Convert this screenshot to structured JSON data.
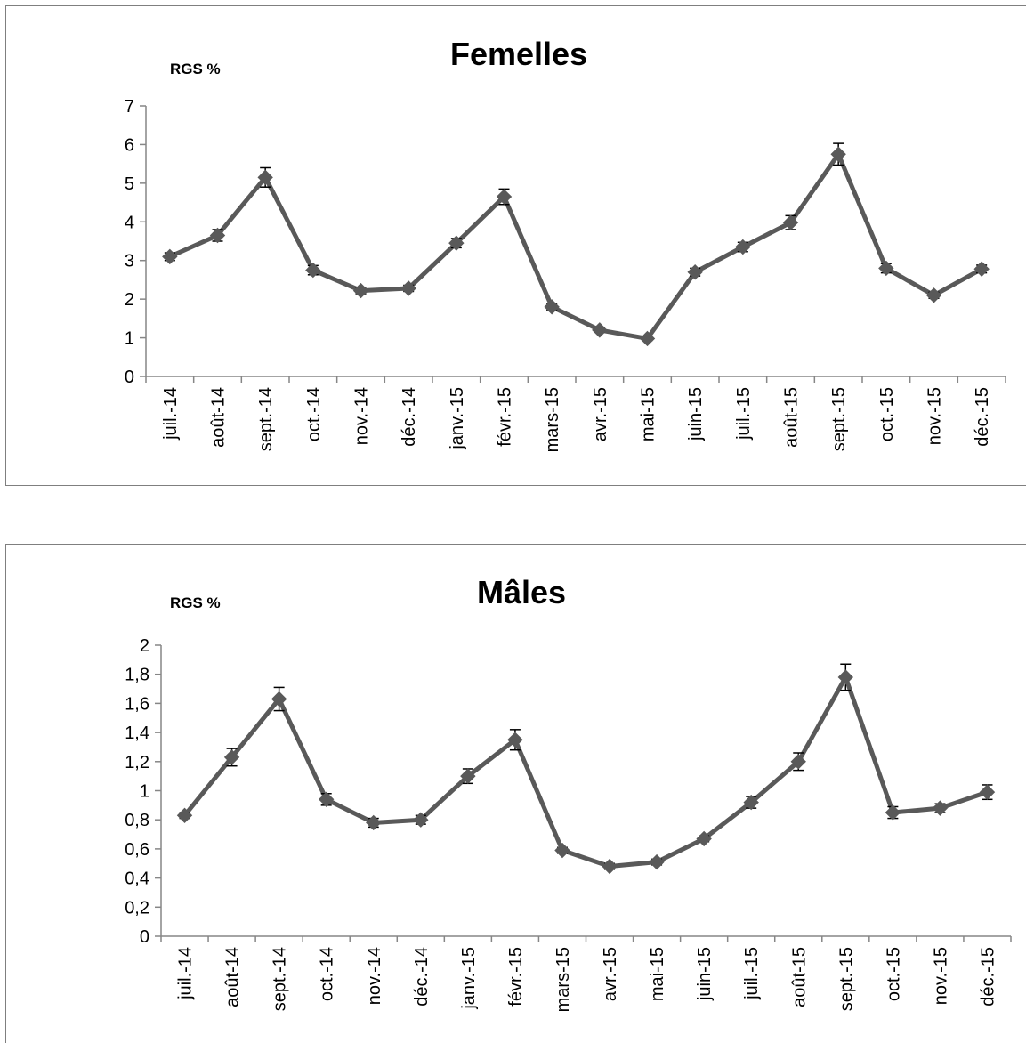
{
  "chart_data": [
    {
      "type": "line",
      "title": "Femelles",
      "ylabel": "RGS %",
      "xlabel": "",
      "ylim": [
        0,
        7
      ],
      "yticks": [
        "0",
        "1",
        "2",
        "3",
        "4",
        "5",
        "6",
        "7"
      ],
      "grid": false,
      "legend": "none",
      "color": "#595959",
      "marker": "diamond",
      "error_bars": true,
      "categories": [
        "juil.-14",
        "août-14",
        "sept.-14",
        "oct.-14",
        "nov.-14",
        "déc.-14",
        "janv.-15",
        "févr.-15",
        "mars-15",
        "avr.-15",
        "mai-15",
        "juin-15",
        "juil.-15",
        "août-15",
        "sept.-15",
        "oct.-15",
        "nov.-15",
        "déc.-15"
      ],
      "values": [
        3.1,
        3.65,
        5.15,
        2.75,
        2.22,
        2.28,
        3.45,
        4.65,
        1.8,
        1.2,
        0.98,
        2.7,
        3.35,
        3.98,
        5.75,
        2.8,
        2.1,
        2.78
      ],
      "errors": [
        0.1,
        0.15,
        0.25,
        0.12,
        0.08,
        0.08,
        0.12,
        0.2,
        0.08,
        0.05,
        0.05,
        0.1,
        0.12,
        0.18,
        0.28,
        0.12,
        0.08,
        0.1
      ]
    },
    {
      "type": "line",
      "title": "Mâles",
      "ylabel": "RGS %",
      "xlabel": "",
      "ylim": [
        0,
        2
      ],
      "yticks": [
        "0",
        "0,2",
        "0,4",
        "0,6",
        "0,8",
        "1",
        "1,2",
        "1,4",
        "1,6",
        "1,8",
        "2"
      ],
      "grid": false,
      "legend": "none",
      "color": "#595959",
      "marker": "diamond",
      "error_bars": true,
      "categories": [
        "juil.-14",
        "août-14",
        "sept.-14",
        "oct.-14",
        "nov.-14",
        "déc.-14",
        "janv.-15",
        "févr.-15",
        "mars-15",
        "avr.-15",
        "mai-15",
        "juin-15",
        "juil.-15",
        "août-15",
        "sept.-15",
        "oct.-15",
        "nov.-15",
        "déc.-15"
      ],
      "values": [
        0.83,
        1.23,
        1.63,
        0.94,
        0.78,
        0.8,
        1.1,
        1.35,
        0.59,
        0.48,
        0.51,
        0.67,
        0.92,
        1.2,
        1.78,
        0.85,
        0.88,
        0.99
      ],
      "errors": [
        0.02,
        0.06,
        0.08,
        0.04,
        0.03,
        0.03,
        0.05,
        0.07,
        0.02,
        0.02,
        0.02,
        0.02,
        0.04,
        0.06,
        0.09,
        0.04,
        0.03,
        0.05
      ]
    }
  ]
}
